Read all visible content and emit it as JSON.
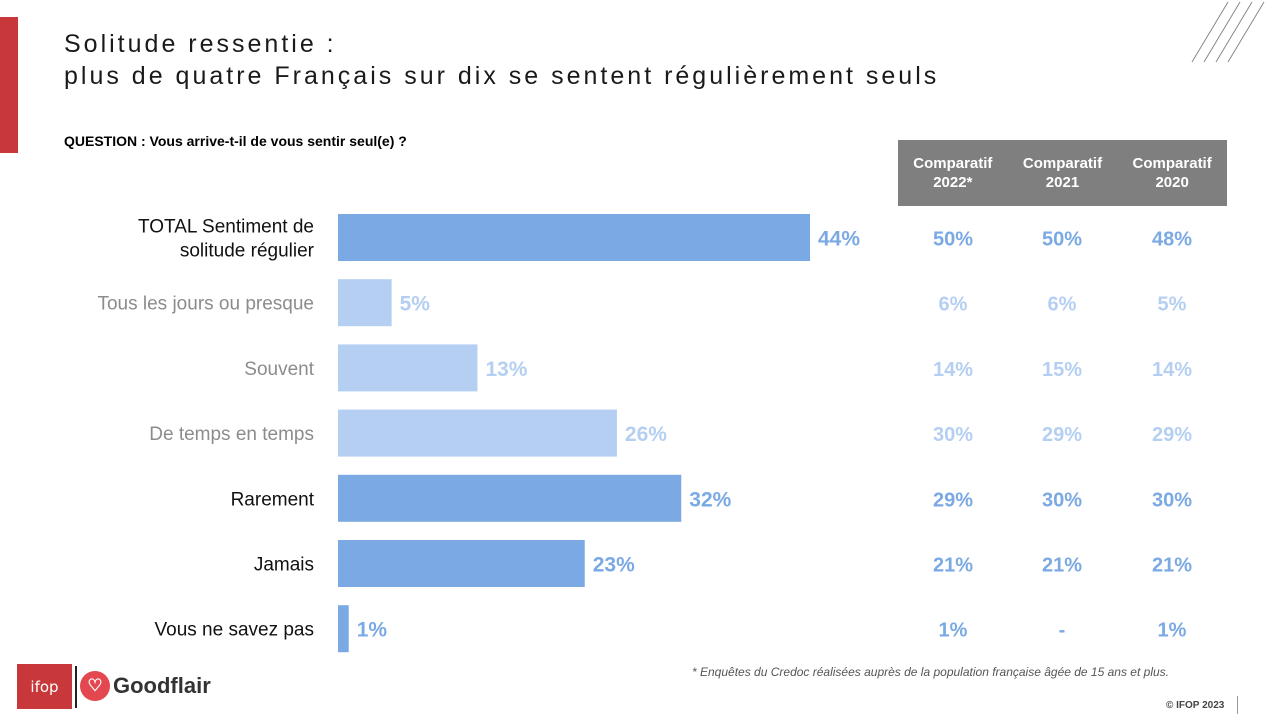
{
  "title_line1": "Solitude ressentie :",
  "title_line2": "plus de quatre Français sur dix se sentent régulièrement seuls",
  "question": "QUESTION : Vous arrive-t-il de vous sentir seul(e) ?",
  "comparison_headers": [
    {
      "line1": "Comparatif",
      "line2": "2022*"
    },
    {
      "line1": "Comparatif",
      "line2": "2021"
    },
    {
      "line1": "Comparatif",
      "line2": "2020"
    }
  ],
  "footnote": "* Enquêtes du Credoc réalisées auprès de la population française âgée de 15 ans et plus.",
  "copyright": "© IFOP 2023",
  "logos": {
    "ifop": "ifop",
    "goodflair": "Goodflair"
  },
  "colors": {
    "accent": "#c8373a",
    "bar_main": "#7aa9e3",
    "bar_light": "#b4cff2",
    "header_bg": "#7f7f7f"
  },
  "chart_data": {
    "type": "bar",
    "orientation": "horizontal",
    "unit": "%",
    "categories": [
      "TOTAL Sentiment de solitude régulier",
      "Tous les jours ou presque",
      "Souvent",
      "De temps en temps",
      "Rarement",
      "Jamais",
      "Vous ne savez pas"
    ],
    "category_lines": [
      [
        "TOTAL Sentiment de",
        "solitude régulier"
      ],
      [
        "Tous les jours ou presque"
      ],
      [
        "Souvent"
      ],
      [
        "De temps en temps"
      ],
      [
        "Rarement"
      ],
      [
        "Jamais"
      ],
      [
        "Vous ne savez pas"
      ]
    ],
    "values": [
      44,
      5,
      13,
      26,
      32,
      23,
      1
    ],
    "value_labels": [
      "44%",
      "5%",
      "13%",
      "26%",
      "32%",
      "23%",
      "1%"
    ],
    "emphasis": [
      "main",
      "light",
      "light",
      "light",
      "main",
      "main",
      "main"
    ],
    "comparisons": [
      {
        "name": "2022*",
        "labels": [
          "50%",
          "6%",
          "14%",
          "30%",
          "29%",
          "21%",
          "1%"
        ]
      },
      {
        "name": "2021",
        "labels": [
          "50%",
          "6%",
          "15%",
          "29%",
          "30%",
          "21%",
          "-"
        ]
      },
      {
        "name": "2020",
        "labels": [
          "48%",
          "5%",
          "14%",
          "29%",
          "30%",
          "21%",
          "1%"
        ]
      }
    ],
    "xlim": [
      0,
      44
    ],
    "grid": false,
    "legend": "none"
  }
}
